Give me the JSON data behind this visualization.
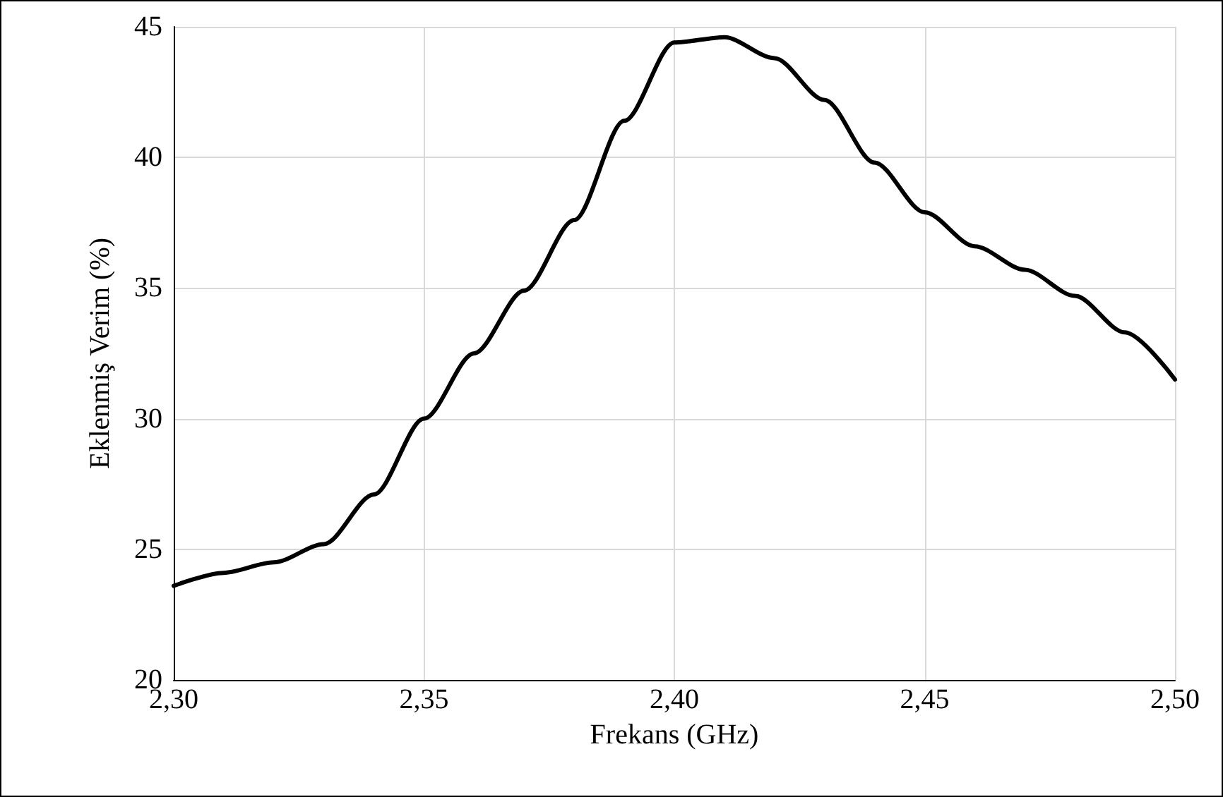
{
  "chart_data": {
    "type": "line",
    "xlabel": "Frekans (GHz)",
    "ylabel": "Eklenmiş Verim (%)",
    "x": [
      2.3,
      2.31,
      2.32,
      2.33,
      2.34,
      2.35,
      2.36,
      2.37,
      2.38,
      2.39,
      2.4,
      2.41,
      2.42,
      2.43,
      2.44,
      2.45,
      2.46,
      2.47,
      2.48,
      2.49,
      2.5
    ],
    "series": [
      {
        "color": "#000000",
        "values": [
          23.6,
          24.1,
          24.5,
          25.2,
          27.1,
          30.0,
          32.5,
          34.9,
          37.6,
          41.4,
          44.4,
          44.6,
          43.8,
          42.2,
          39.8,
          37.9,
          36.6,
          35.7,
          34.7,
          33.3,
          31.5
        ]
      }
    ],
    "xlim": [
      2.3,
      2.5
    ],
    "xticks": [
      {
        "value": 2.3,
        "label": "2,30"
      },
      {
        "value": 2.35,
        "label": "2,35"
      },
      {
        "value": 2.4,
        "label": "2,40"
      },
      {
        "value": 2.45,
        "label": "2,45"
      },
      {
        "value": 2.5,
        "label": "2,50"
      }
    ],
    "ylim": [
      20,
      45
    ],
    "yticks": [
      20,
      25,
      30,
      35,
      40,
      45
    ],
    "grid": true,
    "marker": "none",
    "line_style": "solid"
  }
}
